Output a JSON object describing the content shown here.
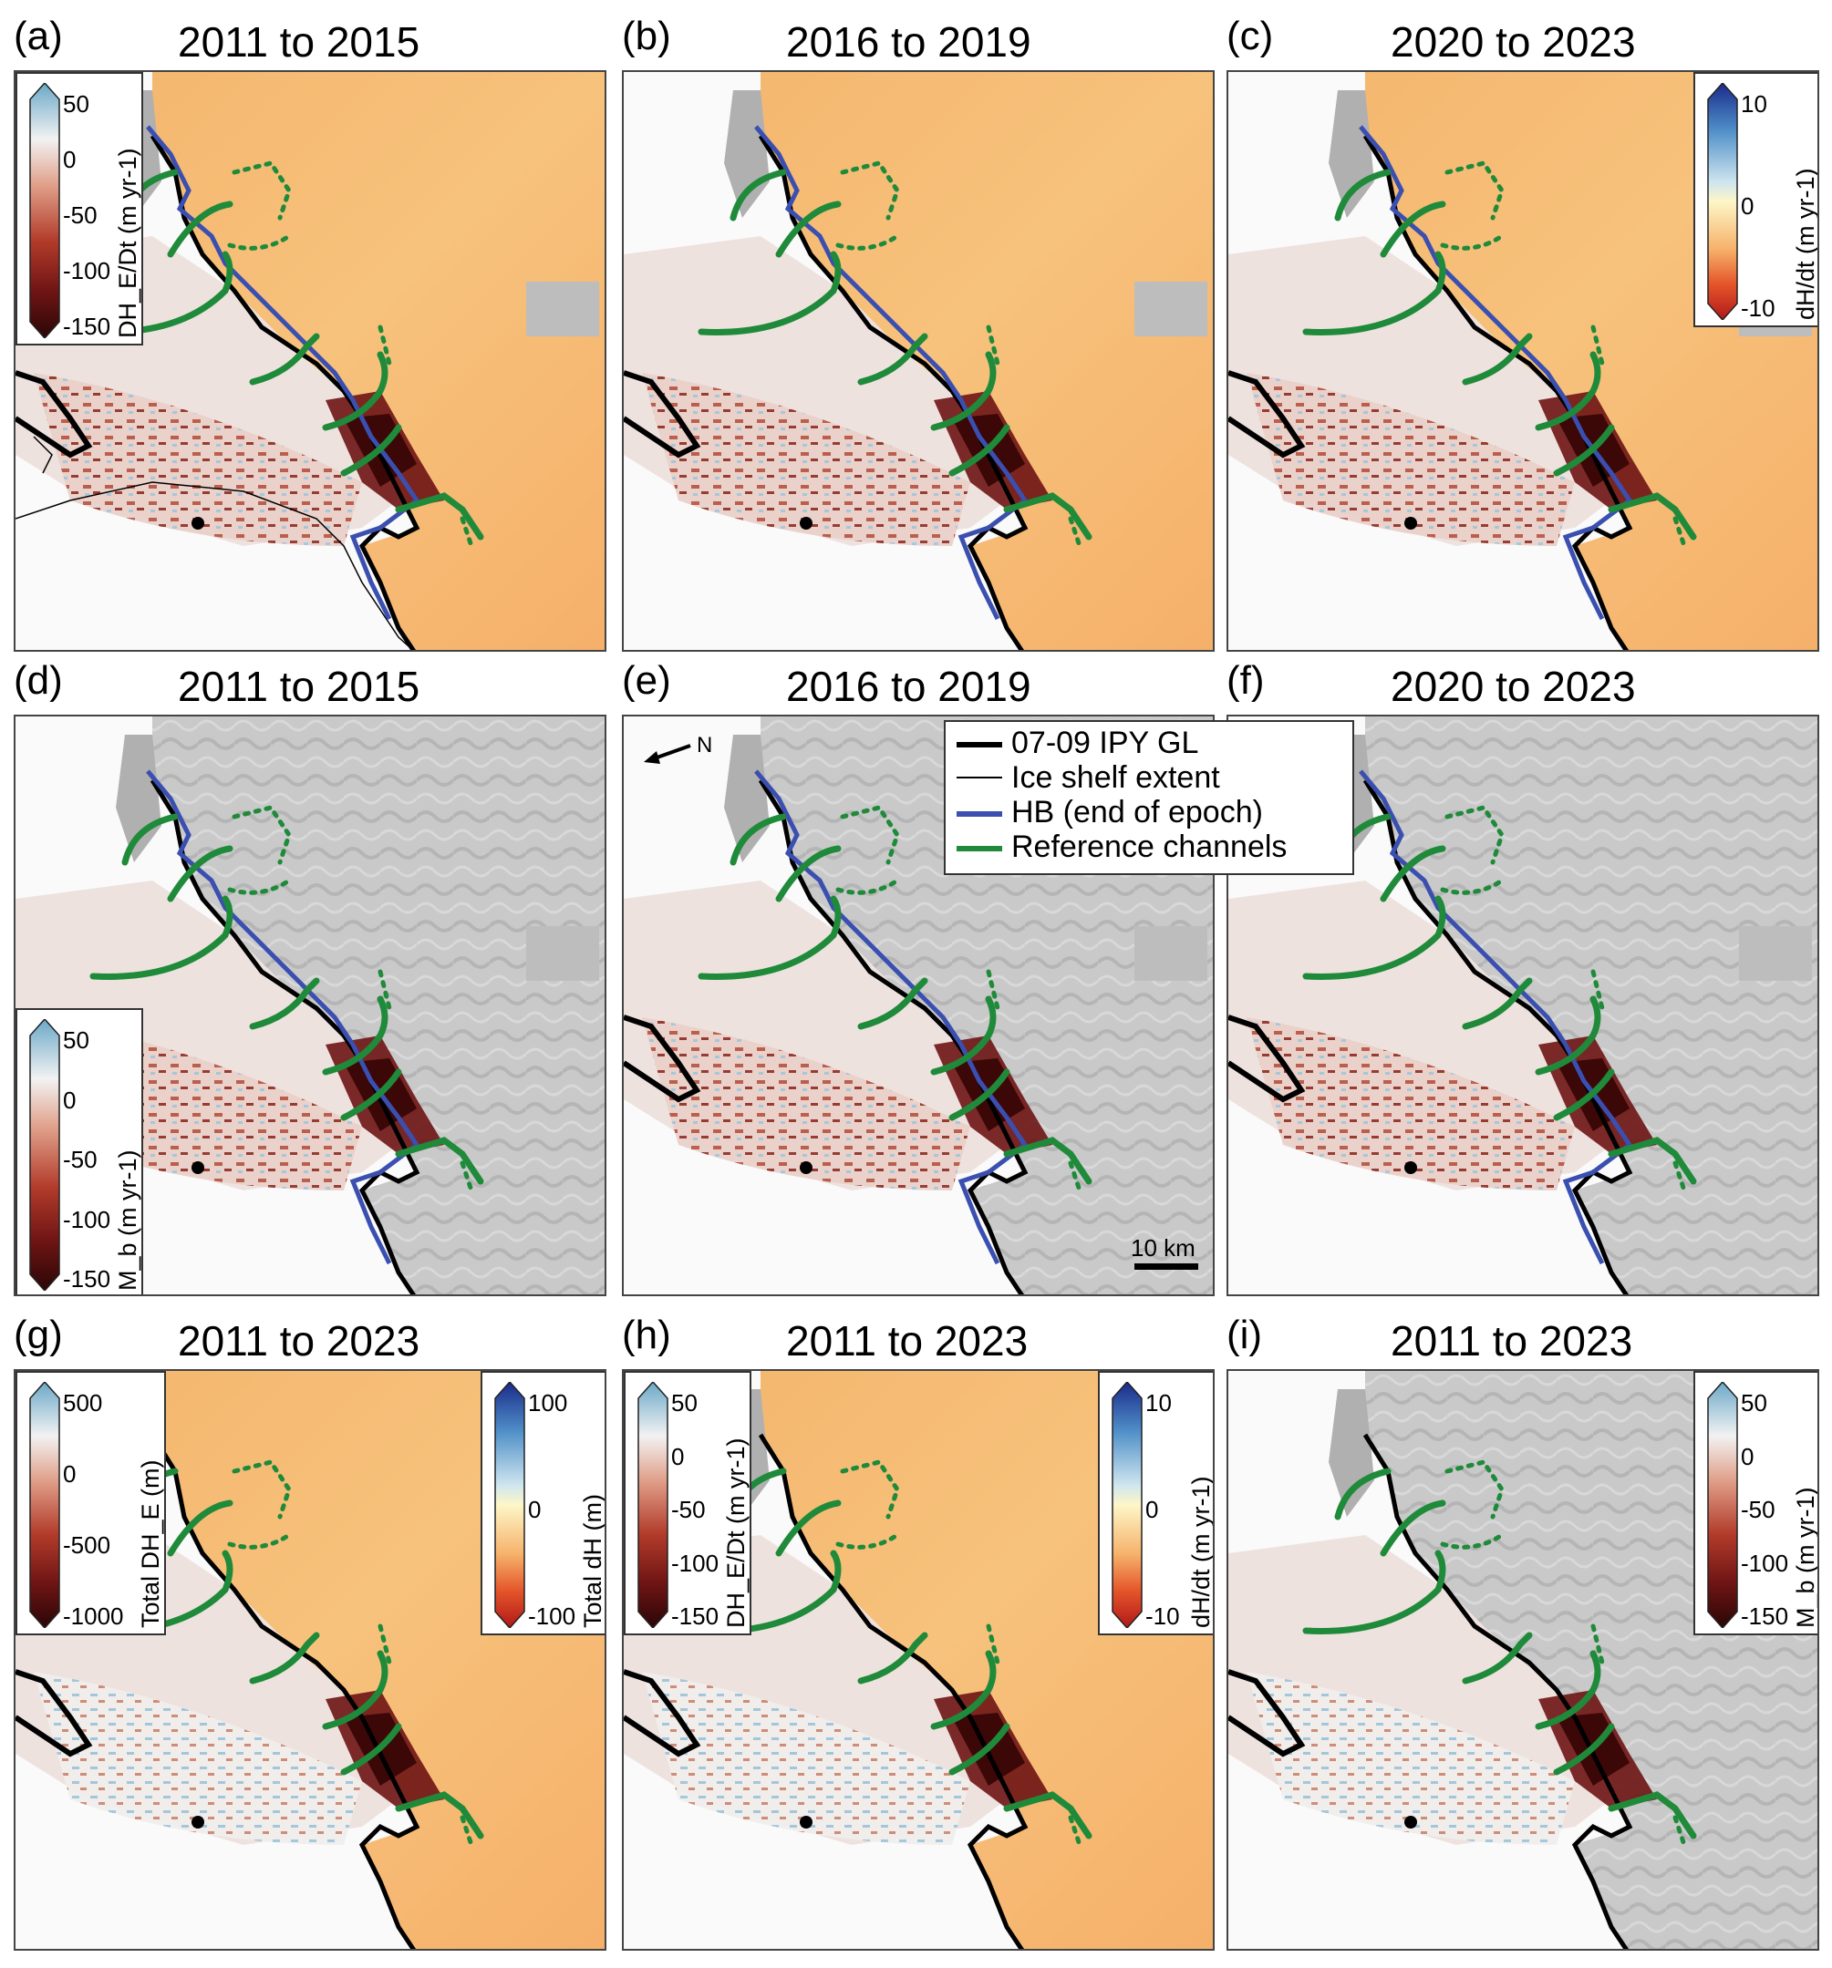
{
  "panels": [
    {
      "label": "(a)",
      "title": "2011 to 2015",
      "field": "DHE/Dt",
      "base": "warm"
    },
    {
      "label": "(b)",
      "title": "2016 to 2019",
      "field": "DHE/Dt",
      "base": "warm"
    },
    {
      "label": "(c)",
      "title": "2020 to 2023",
      "field": "dH/dt",
      "base": "warm"
    },
    {
      "label": "(d)",
      "title": "2011 to 2015",
      "field": "Mb",
      "base": "gray"
    },
    {
      "label": "(e)",
      "title": "2016 to 2019",
      "field": "Mb",
      "base": "gray"
    },
    {
      "label": "(f)",
      "title": "2020 to 2023",
      "field": "Mb",
      "base": "gray"
    },
    {
      "label": "(g)",
      "title": "2011 to 2023",
      "field": "Total",
      "base": "warm"
    },
    {
      "label": "(h)",
      "title": "2011 to 2023",
      "field": "Rates",
      "base": "warm"
    },
    {
      "label": "(i)",
      "title": "2011 to 2023",
      "field": "Mb",
      "base": "gray"
    }
  ],
  "colorbars": {
    "dhe_dt": {
      "ticks": [
        "50",
        "0",
        "-50",
        "-100",
        "-150"
      ],
      "title": "DH_E/Dt (m yr-1)"
    },
    "dh_dt": {
      "ticks": [
        "10",
        "0",
        "-10"
      ],
      "title": "dH/dt (m yr-1)"
    },
    "mb": {
      "ticks": [
        "50",
        "0",
        "-50",
        "-100",
        "-150"
      ],
      "title": "M_b (m yr-1)"
    },
    "total_dhe": {
      "ticks": [
        "500",
        "0",
        "-500",
        "-1000"
      ],
      "title": "Total DH_E (m)"
    },
    "total_dh": {
      "ticks": [
        "100",
        "0",
        "-100"
      ],
      "title": "Total dH (m)"
    }
  },
  "legend": {
    "items": [
      {
        "label": "07-09 IPY GL",
        "color": "#000000",
        "width": "thick"
      },
      {
        "label": "Ice shelf extent",
        "color": "#000000",
        "width": "thin"
      },
      {
        "label": "HB (end of epoch)",
        "color": "#3a4fb0",
        "width": "thick"
      },
      {
        "label": "Reference channels",
        "color": "#1f8a3a",
        "width": "thick"
      }
    ]
  },
  "scalebar": {
    "label": "10 km"
  },
  "north_arrow": {
    "label": "N"
  },
  "colors": {
    "grounding_line": "#000000",
    "hinge_boundary": "#3a4fb0",
    "reference_channels": "#1f8a3a",
    "melt_high": "#5a0d0d",
    "warm_background": "#f6b26b",
    "positive": "#7fb3d5"
  }
}
